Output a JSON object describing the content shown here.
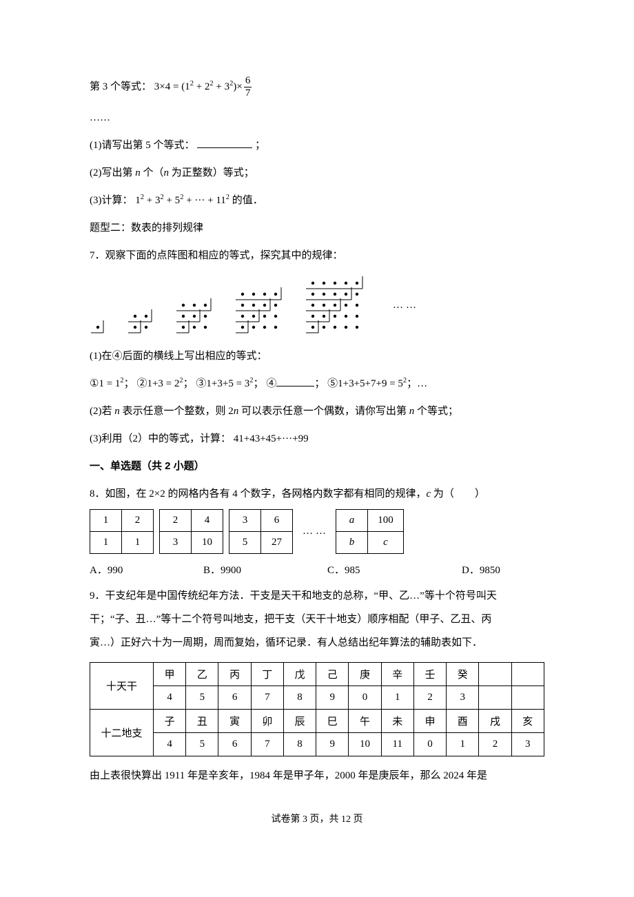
{
  "colors": {
    "text": "#000000",
    "bg": "#ffffff",
    "border": "#000000"
  },
  "eq3": {
    "prefix": "第 3 个等式：",
    "expr_lhs": "3×4 =",
    "expr_paren": "(1² + 2² + 3²) ×",
    "frac_num": "6",
    "frac_den": "7"
  },
  "dots": "……",
  "q1": {
    "label": "(1)请写出第 5 个等式：",
    "suffix": "；"
  },
  "q2": "(2)写出第 n 个（n 为正整数）等式；",
  "q3": {
    "prefix": "(3)计算：",
    "expr": "1² + 3² + 5² + ··· + 11²",
    "suffix": " 的值．"
  },
  "type2": "题型二：数表的排列规律",
  "p7": "7．观察下面的点阵图和相应的等式，探究其中的规律：",
  "dotfigures": {
    "dot_radius": 2.2,
    "cell": 16,
    "line_color": "#000000",
    "figures": [
      1,
      2,
      3,
      4,
      5
    ],
    "ellipsis": "……"
  },
  "p7q1": "(1)在④后面的横线上写出相应的等式：",
  "p7eqs": {
    "c1": "①",
    "e1_l": "1 = 1²",
    "c2": "②",
    "e2_l": "1+3 = 2²",
    "c3": "③",
    "e3_l": "1+3+5 = 3²",
    "c4": "④",
    "c5": "⑤",
    "e5_l": "1+3+5+7+9 = 5²",
    "tail": "；…",
    "sep": "；"
  },
  "p7q2": "(2)若 n 表示任意一个整数，则 2n 可以表示任意一个偶数，请你写出第 n 个等式；",
  "p7q3": {
    "prefix": "(3)利用（2）中的等式，计算：",
    "expr": "41+43+45+···+99"
  },
  "section": "一、单选题（共 2 小题）",
  "p8": "8．如图，在 2×2 的网格内各有 4 个数字，各网格内数字都有相同的规律，c 为（　　）",
  "grids": {
    "g1": [
      [
        "1",
        "2"
      ],
      [
        "1",
        "1"
      ]
    ],
    "g2": [
      [
        "2",
        "4"
      ],
      [
        "3",
        "10"
      ]
    ],
    "g3": [
      [
        "3",
        "6"
      ],
      [
        "5",
        "27"
      ]
    ],
    "dots": "……",
    "g4": [
      [
        "a",
        "100"
      ],
      [
        "b",
        "c"
      ]
    ]
  },
  "p8opts": {
    "A": "A．990",
    "B": "B．9900",
    "C": "C．985",
    "D": "D．9850"
  },
  "p9": {
    "l1": "9．干支纪年是中国传统纪年方法．干支是天干和地支的总称，“甲、乙…”等十个符号叫天",
    "l2": "干；“子、丑…”等十二个符号叫地支，把干支（天干十地支）顺序相配（甲子、乙丑、丙",
    "l3": "寅…）正好六十为一周期，周而复始，循环记录．有人总结出纪年算法的辅助表如下．"
  },
  "ganzhi": {
    "row1_label": "十天干",
    "tiangan": [
      "甲",
      "乙",
      "丙",
      "丁",
      "戊",
      "己",
      "庚",
      "辛",
      "壬",
      "癸",
      "",
      ""
    ],
    "tiangan_nums": [
      "4",
      "5",
      "6",
      "7",
      "8",
      "9",
      "0",
      "1",
      "2",
      "3",
      "",
      ""
    ],
    "row2_label": "十二地支",
    "dizhi": [
      "子",
      "丑",
      "寅",
      "卯",
      "辰",
      "巳",
      "午",
      "未",
      "申",
      "酉",
      "戌",
      "亥"
    ],
    "dizhi_nums": [
      "4",
      "5",
      "6",
      "7",
      "8",
      "9",
      "10",
      "11",
      "0",
      "1",
      "2",
      "3"
    ]
  },
  "p9_after": "由上表很快算出 1911 年是辛亥年，1984 年是甲子年，2000 年是庚辰年，那么 2024 年是",
  "footer": "试卷第 3 页，共 12 页"
}
